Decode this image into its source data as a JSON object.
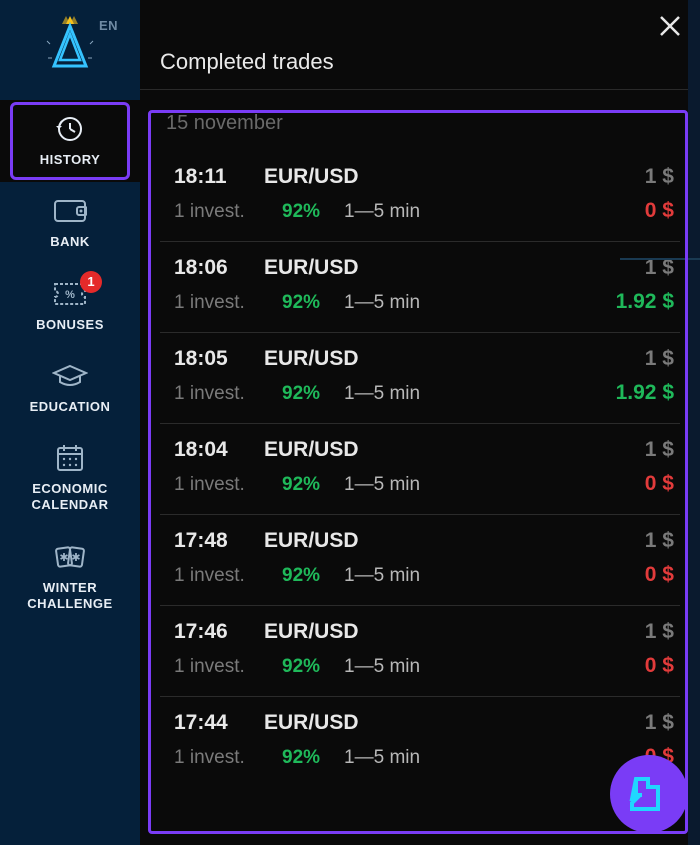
{
  "lang": "EN",
  "sidebar": {
    "items": [
      {
        "label": "HISTORY",
        "active": true
      },
      {
        "label": "BANK",
        "active": false
      },
      {
        "label": "BONUSES",
        "active": false,
        "badge": "1"
      },
      {
        "label": "EDUCATION",
        "active": false
      },
      {
        "label": "ECONOMIC\nCALENDAR",
        "active": false
      },
      {
        "label": "WINTER\nCHALLENGE",
        "active": false
      }
    ]
  },
  "panel": {
    "title": "Completed trades",
    "date": "15 november",
    "trades": [
      {
        "time": "18:11",
        "pair": "EUR/USD",
        "stake": "1 $",
        "invest": "1 invest.",
        "pct": "92%",
        "range": "1—5 min",
        "result": "0 $",
        "result_color": "c-red"
      },
      {
        "time": "18:06",
        "pair": "EUR/USD",
        "stake": "1 $",
        "invest": "1 invest.",
        "pct": "92%",
        "range": "1—5 min",
        "result": "1.92 $",
        "result_color": "c-green"
      },
      {
        "time": "18:05",
        "pair": "EUR/USD",
        "stake": "1 $",
        "invest": "1 invest.",
        "pct": "92%",
        "range": "1—5 min",
        "result": "1.92 $",
        "result_color": "c-green"
      },
      {
        "time": "18:04",
        "pair": "EUR/USD",
        "stake": "1 $",
        "invest": "1 invest.",
        "pct": "92%",
        "range": "1—5 min",
        "result": "0 $",
        "result_color": "c-red"
      },
      {
        "time": "17:48",
        "pair": "EUR/USD",
        "stake": "1 $",
        "invest": "1 invest.",
        "pct": "92%",
        "range": "1—5 min",
        "result": "0 $",
        "result_color": "c-red"
      },
      {
        "time": "17:46",
        "pair": "EUR/USD",
        "stake": "1 $",
        "invest": "1 invest.",
        "pct": "92%",
        "range": "1—5 min",
        "result": "0 $",
        "result_color": "c-red"
      },
      {
        "time": "17:44",
        "pair": "EUR/USD",
        "stake": "1 $",
        "invest": "1 invest.",
        "pct": "92%",
        "range": "1—5 min",
        "result": "0 $",
        "result_color": "c-red"
      }
    ]
  },
  "colors": {
    "accent": "#7a3cf6",
    "bg_sidebar": "#05203a",
    "bg_panel": "#0a0a0a",
    "green": "#1fb95a",
    "red": "#e23b3b",
    "gray": "#7a7a7a"
  }
}
